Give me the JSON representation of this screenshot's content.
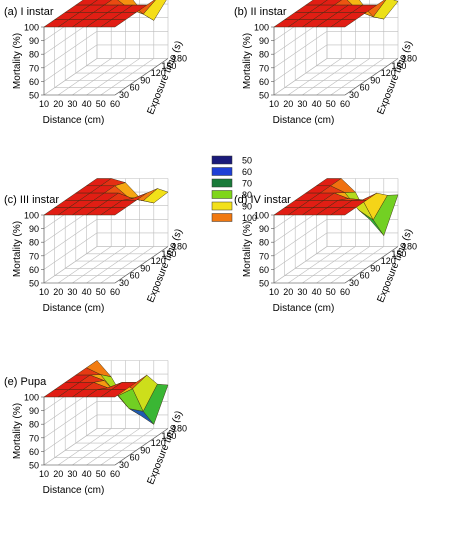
{
  "figure": {
    "panels": [
      {
        "label": "(a) I instar",
        "zlabel": "Mortality (%)",
        "xlabel": "Distance (cm)",
        "ylabel": "Exposure time (s)"
      },
      {
        "label": "(b) II instar",
        "zlabel": "Mortality (%)",
        "xlabel": "Distance (cm)",
        "ylabel": "Exposure time (s)"
      },
      {
        "label": "(c) III instar",
        "zlabel": "Mortality (%)",
        "xlabel": "Distance (cm)",
        "ylabel": "Exposure time (s)"
      },
      {
        "label": "(d) IV instar",
        "zlabel": "Mortality (%)",
        "xlabel": "Distance (cm)",
        "ylabel": "Exposure time (s)"
      },
      {
        "label": "(e) Pupa",
        "zlabel": "Mortality (%)",
        "xlabel": "Distance (cm)",
        "ylabel": "Exposure time (s)"
      }
    ],
    "x_ticks": [
      "10",
      "20",
      "30",
      "40",
      "50",
      "60"
    ],
    "y_ticks": [
      "30",
      "60",
      "90",
      "120",
      "150",
      "180"
    ],
    "z_ticks": [
      "50",
      "60",
      "70",
      "80",
      "90",
      "100"
    ],
    "legend": {
      "labels": [
        "50",
        "60",
        "70",
        "80",
        "90",
        "100"
      ],
      "colors": [
        "#1a1a7a",
        "#1f3fd6",
        "#1a7a3a",
        "#7fd61a",
        "#f2e01a",
        "#f07810"
      ]
    }
  },
  "chart_data": [
    {
      "type": "surface",
      "title": "(a) I instar",
      "xlabel": "Distance (cm)",
      "ylabel": "Exposure time (s)",
      "zlabel": "Mortality (%)",
      "x": [
        10,
        20,
        30,
        40,
        50,
        60
      ],
      "y": [
        30,
        60,
        90,
        120,
        150,
        180
      ],
      "zlim": [
        50,
        100
      ],
      "z": [
        [
          100,
          100,
          100,
          100,
          100,
          100
        ],
        [
          100,
          100,
          100,
          100,
          100,
          100
        ],
        [
          100,
          100,
          100,
          100,
          100,
          100
        ],
        [
          100,
          100,
          100,
          100,
          100,
          100
        ],
        [
          100,
          100,
          100,
          92,
          88,
          100
        ],
        [
          100,
          100,
          100,
          87,
          78,
          95
        ]
      ]
    },
    {
      "type": "surface",
      "title": "(b) II instar",
      "xlabel": "Distance (cm)",
      "ylabel": "Exposure time (s)",
      "zlabel": "Mortality (%)",
      "x": [
        10,
        20,
        30,
        40,
        50,
        60
      ],
      "y": [
        30,
        60,
        90,
        120,
        150,
        180
      ],
      "zlim": [
        50,
        100
      ],
      "z": [
        [
          100,
          100,
          100,
          100,
          100,
          100
        ],
        [
          100,
          100,
          100,
          100,
          100,
          100
        ],
        [
          100,
          100,
          100,
          100,
          100,
          100
        ],
        [
          100,
          100,
          100,
          100,
          100,
          100
        ],
        [
          100,
          100,
          100,
          90,
          86,
          100
        ],
        [
          100,
          100,
          97,
          83,
          79,
          92
        ]
      ]
    },
    {
      "type": "surface",
      "title": "(c) III instar",
      "xlabel": "Distance (cm)",
      "ylabel": "Exposure time (s)",
      "zlabel": "Mortality (%)",
      "x": [
        10,
        20,
        30,
        40,
        50,
        60
      ],
      "y": [
        30,
        60,
        90,
        120,
        150,
        180
      ],
      "zlim": [
        50,
        100
      ],
      "z": [
        [
          100,
          100,
          100,
          100,
          100,
          100
        ],
        [
          100,
          100,
          100,
          100,
          100,
          100
        ],
        [
          100,
          100,
          100,
          100,
          100,
          100
        ],
        [
          100,
          100,
          100,
          100,
          96,
          100
        ],
        [
          100,
          100,
          100,
          91,
          89,
          98
        ],
        [
          100,
          100,
          97,
          86,
          82,
          90
        ]
      ]
    },
    {
      "type": "surface",
      "title": "(d) IV instar",
      "xlabel": "Distance (cm)",
      "ylabel": "Exposure time (s)",
      "zlabel": "Mortality (%)",
      "x": [
        10,
        20,
        30,
        40,
        50,
        60
      ],
      "y": [
        30,
        60,
        90,
        120,
        150,
        180
      ],
      "zlim": [
        50,
        100
      ],
      "z": [
        [
          100,
          100,
          100,
          100,
          100,
          100
        ],
        [
          100,
          100,
          100,
          100,
          100,
          100
        ],
        [
          100,
          100,
          100,
          100,
          100,
          100
        ],
        [
          100,
          100,
          100,
          96,
          95,
          100
        ],
        [
          100,
          100,
          95,
          82,
          75,
          93
        ],
        [
          100,
          100,
          90,
          70,
          58,
          88
        ]
      ]
    },
    {
      "type": "surface",
      "title": "(e) Pupa",
      "xlabel": "Distance (cm)",
      "ylabel": "Exposure time (s)",
      "zlabel": "Mortality (%)",
      "x": [
        10,
        20,
        30,
        40,
        50,
        60
      ],
      "y": [
        30,
        60,
        90,
        120,
        150,
        180
      ],
      "zlim": [
        50,
        100
      ],
      "z": [
        [
          100,
          100,
          100,
          100,
          100,
          100
        ],
        [
          100,
          100,
          100,
          100,
          100,
          100
        ],
        [
          100,
          100,
          100,
          96,
          100,
          100
        ],
        [
          100,
          100,
          96,
          85,
          90,
          100
        ],
        [
          100,
          95,
          82,
          70,
          68,
          88
        ],
        [
          100,
          88,
          70,
          60,
          53,
          82
        ]
      ]
    }
  ]
}
